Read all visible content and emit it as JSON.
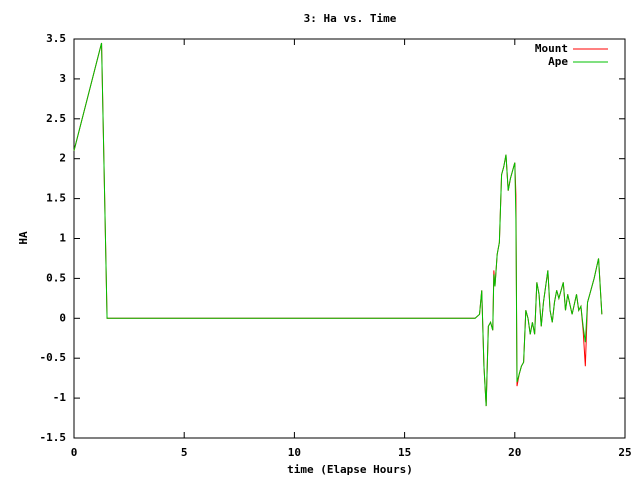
{
  "chart_data": {
    "type": "line",
    "title": "3: Ha vs. Time",
    "xlabel": "time (Elapse Hours)",
    "ylabel": "HA",
    "x": [
      0,
      1.25,
      1.5,
      18.2,
      18.4,
      18.5,
      18.6,
      18.7,
      18.8,
      18.9,
      19.0,
      19.05,
      19.1,
      19.2,
      19.3,
      19.4,
      19.5,
      19.6,
      19.7,
      19.8,
      19.9,
      20.0,
      20.05,
      20.1,
      20.2,
      20.3,
      20.4,
      20.5,
      20.6,
      20.7,
      20.8,
      20.9,
      21.0,
      21.1,
      21.2,
      21.3,
      21.5,
      21.6,
      21.7,
      21.8,
      21.9,
      22.0,
      22.2,
      22.3,
      22.4,
      22.6,
      22.8,
      22.9,
      23.0,
      23.1,
      23.2,
      23.3,
      23.4,
      23.6,
      23.8,
      23.95
    ],
    "series": [
      {
        "name": "Mount",
        "color": "#ff0000",
        "values": [
          2.1,
          3.45,
          0,
          0,
          0.05,
          0.35,
          -0.6,
          -1.1,
          -0.1,
          -0.05,
          -0.15,
          0.6,
          0.4,
          0.8,
          0.95,
          1.8,
          1.9,
          2.05,
          1.6,
          1.75,
          1.85,
          1.95,
          1.55,
          -0.85,
          -0.7,
          -0.6,
          -0.55,
          0.1,
          0,
          -0.2,
          -0.05,
          -0.2,
          0.45,
          0.3,
          -0.1,
          0.2,
          0.6,
          0.1,
          -0.05,
          0.2,
          0.35,
          0.25,
          0.45,
          0.1,
          0.3,
          0.05,
          0.3,
          0.1,
          0.15,
          -0.15,
          -0.6,
          0.2,
          0.3,
          0.5,
          0.75,
          0.05
        ]
      },
      {
        "name": "Ape",
        "color": "#00c000",
        "values": [
          2.1,
          3.45,
          0,
          0,
          0.05,
          0.35,
          -0.6,
          -1.1,
          -0.1,
          -0.05,
          -0.15,
          0.55,
          0.4,
          0.8,
          0.95,
          1.8,
          1.9,
          2.05,
          1.6,
          1.75,
          1.85,
          1.95,
          1.25,
          -0.8,
          -0.7,
          -0.6,
          -0.55,
          0.1,
          0,
          -0.2,
          -0.05,
          -0.2,
          0.45,
          0.3,
          -0.1,
          0.2,
          0.6,
          0.1,
          -0.05,
          0.2,
          0.35,
          0.25,
          0.45,
          0.1,
          0.3,
          0.05,
          0.3,
          0.1,
          0.15,
          -0.1,
          -0.3,
          0.2,
          0.3,
          0.5,
          0.75,
          0.05
        ]
      }
    ],
    "xlim": [
      0,
      25
    ],
    "xticks": [
      0,
      5,
      10,
      15,
      20,
      25
    ],
    "ylim": [
      -1.5,
      3.5
    ],
    "yticks": [
      -1.5,
      -1,
      -0.5,
      0,
      0.5,
      1,
      1.5,
      2,
      2.5,
      3,
      3.5
    ],
    "legend": "upper right"
  }
}
